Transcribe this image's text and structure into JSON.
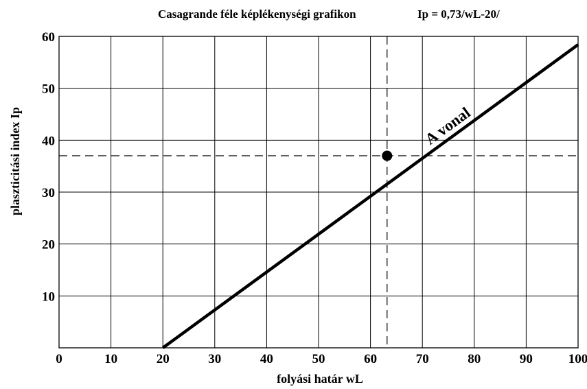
{
  "chart_data": {
    "type": "line",
    "title": "Casagrande féle képlékenységi grafikon",
    "subtitle": "Ip = 0,73/wL-20/",
    "xlabel": "folyási határ  wL",
    "ylabel": "plaszticitási index  Ip",
    "xlim": [
      0,
      100
    ],
    "ylim": [
      0,
      60
    ],
    "x_ticks": [
      0,
      10,
      20,
      30,
      40,
      50,
      60,
      70,
      80,
      90,
      100
    ],
    "x_tick_labels": [
      "0",
      "10",
      "20",
      "30",
      "40",
      "50",
      "60",
      "70",
      "80",
      "90",
      "100"
    ],
    "y_ticks": [
      10,
      20,
      30,
      40,
      50,
      60
    ],
    "y_tick_labels": [
      "10",
      "20",
      "30",
      "40",
      "50",
      "60"
    ],
    "grid": true,
    "series": [
      {
        "name": "A vonal",
        "x": [
          20,
          100
        ],
        "y": [
          0,
          58.4
        ],
        "color": "#000000"
      }
    ],
    "point": {
      "x": 63.2,
      "y": 37,
      "color": "#000000"
    },
    "reference_lines": {
      "vertical_x": 63.2,
      "horizontal_y": 37
    }
  }
}
